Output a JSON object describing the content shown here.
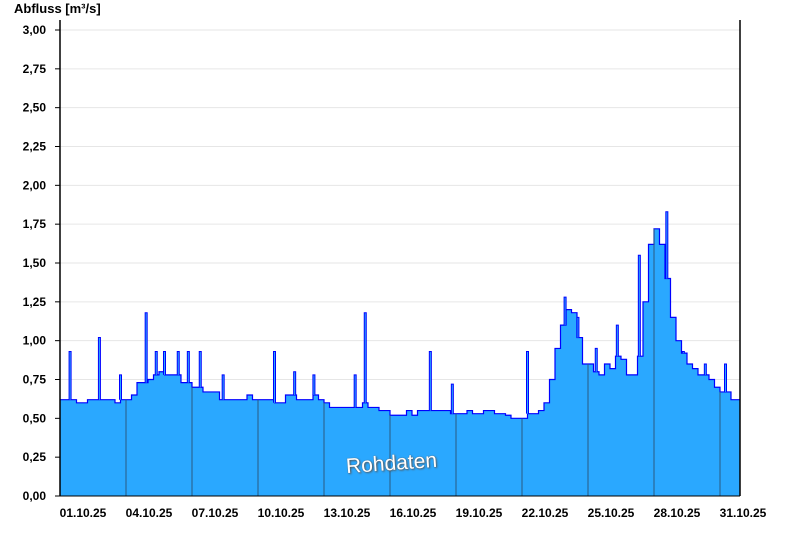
{
  "chart_data": {
    "type": "area",
    "title": "",
    "ylabel": "Abfluss [m³/s]",
    "xlabel": "",
    "ylim": [
      0,
      3.0
    ],
    "yticks": [
      "0,00",
      "0,25",
      "0,50",
      "0,75",
      "1,00",
      "1,25",
      "1,50",
      "1,75",
      "2,00",
      "2,25",
      "2,50",
      "2,75",
      "3,00"
    ],
    "xticks": [
      "01.10.25",
      "04.10.25",
      "07.10.25",
      "10.10.25",
      "13.10.25",
      "16.10.25",
      "19.10.25",
      "22.10.25",
      "25.10.25",
      "28.10.25",
      "31.10.25"
    ],
    "grid": true,
    "watermark": "Rohdaten",
    "colors": {
      "fill": "#2aa8ff",
      "line": "#0000ff",
      "grid": "#e6e6e6",
      "day_marker": "#2a5a80"
    },
    "series": [
      {
        "sampling": "6h (00, 06, 12, 18 Uhr)",
        "daily_values": [
          {
            "date": "01.10.25",
            "v": [
              0.62,
              0.62,
              0.62,
              0.6
            ]
          },
          {
            "date": "02.10.25",
            "v": [
              0.6,
              0.62,
              0.62,
              0.62
            ]
          },
          {
            "date": "03.10.25",
            "v": [
              0.62,
              0.62,
              0.6,
              0.62
            ]
          },
          {
            "date": "04.10.25",
            "v": [
              0.62,
              0.65,
              0.73,
              0.73
            ]
          },
          {
            "date": "05.10.25",
            "v": [
              0.75,
              0.78,
              0.8,
              0.78
            ]
          },
          {
            "date": "06.10.25",
            "v": [
              0.78,
              0.78,
              0.73,
              0.73
            ]
          },
          {
            "date": "07.10.25",
            "v": [
              0.7,
              0.7,
              0.67,
              0.67
            ]
          },
          {
            "date": "08.10.25",
            "v": [
              0.67,
              0.62,
              0.62,
              0.62
            ]
          },
          {
            "date": "09.10.25",
            "v": [
              0.62,
              0.62,
              0.65,
              0.62
            ]
          },
          {
            "date": "10.10.25",
            "v": [
              0.62,
              0.62,
              0.62,
              0.6
            ]
          },
          {
            "date": "11.10.25",
            "v": [
              0.6,
              0.65,
              0.65,
              0.62
            ]
          },
          {
            "date": "12.10.25",
            "v": [
              0.62,
              0.62,
              0.65,
              0.62
            ]
          },
          {
            "date": "13.10.25",
            "v": [
              0.6,
              0.57,
              0.57,
              0.57
            ]
          },
          {
            "date": "14.10.25",
            "v": [
              0.57,
              0.57,
              0.57,
              0.6
            ]
          },
          {
            "date": "15.10.25",
            "v": [
              0.57,
              0.57,
              0.55,
              0.55
            ]
          },
          {
            "date": "16.10.25",
            "v": [
              0.52,
              0.52,
              0.52,
              0.55
            ]
          },
          {
            "date": "17.10.25",
            "v": [
              0.52,
              0.55,
              0.55,
              0.55
            ]
          },
          {
            "date": "18.10.25",
            "v": [
              0.55,
              0.55,
              0.55,
              0.53
            ]
          },
          {
            "date": "19.10.25",
            "v": [
              0.53,
              0.53,
              0.55,
              0.53
            ]
          },
          {
            "date": "20.10.25",
            "v": [
              0.53,
              0.55,
              0.55,
              0.53
            ]
          },
          {
            "date": "21.10.25",
            "v": [
              0.53,
              0.52,
              0.5,
              0.5
            ]
          },
          {
            "date": "22.10.25",
            "v": [
              0.5,
              0.53,
              0.53,
              0.55
            ]
          },
          {
            "date": "23.10.25",
            "v": [
              0.6,
              0.75,
              0.95,
              1.1
            ]
          },
          {
            "date": "24.10.25",
            "v": [
              1.2,
              1.18,
              1.02,
              0.85
            ]
          },
          {
            "date": "25.10.25",
            "v": [
              0.85,
              0.8,
              0.78,
              0.85
            ]
          },
          {
            "date": "26.10.25",
            "v": [
              0.82,
              0.9,
              0.88,
              0.78
            ]
          },
          {
            "date": "27.10.25",
            "v": [
              0.78,
              0.9,
              1.25,
              1.62
            ]
          },
          {
            "date": "28.10.25",
            "v": [
              1.72,
              1.62,
              1.4,
              1.15
            ]
          },
          {
            "date": "29.10.25",
            "v": [
              1.0,
              0.92,
              0.85,
              0.82
            ]
          },
          {
            "date": "30.10.25",
            "v": [
              0.78,
              0.78,
              0.75,
              0.7
            ]
          },
          {
            "date": "31.10.25",
            "v": [
              0.67,
              0.67,
              0.62,
              0.62
            ]
          }
        ],
        "spikes": [
          {
            "t": "01.10.25 11:00",
            "v": 0.93
          },
          {
            "t": "02.10.25 19:00",
            "v": 1.02
          },
          {
            "t": "03.10.25 18:00",
            "v": 0.78
          },
          {
            "t": "04.10.25 22:00",
            "v": 1.18
          },
          {
            "t": "05.10.25 09:00",
            "v": 0.93
          },
          {
            "t": "05.10.25 18:00",
            "v": 0.93
          },
          {
            "t": "06.10.25 09:00",
            "v": 0.93
          },
          {
            "t": "06.10.25 20:00",
            "v": 0.93
          },
          {
            "t": "07.10.25 09:00",
            "v": 0.93
          },
          {
            "t": "08.10.25 10:00",
            "v": 0.78
          },
          {
            "t": "10.10.25 18:00",
            "v": 0.93
          },
          {
            "t": "11.10.25 16:00",
            "v": 0.8
          },
          {
            "t": "12.10.25 13:00",
            "v": 0.78
          },
          {
            "t": "14.10.25 10:00",
            "v": 0.78
          },
          {
            "t": "14.10.25 21:00",
            "v": 1.18
          },
          {
            "t": "17.10.25 20:00",
            "v": 0.93
          },
          {
            "t": "18.10.25 20:00",
            "v": 0.72
          },
          {
            "t": "22.10.25 06:00",
            "v": 0.93
          },
          {
            "t": "23.10.25 23:00",
            "v": 1.28
          },
          {
            "t": "24.10.25 13:00",
            "v": 1.15
          },
          {
            "t": "25.10.25 09:00",
            "v": 0.95
          },
          {
            "t": "26.10.25 08:00",
            "v": 1.1
          },
          {
            "t": "27.10.25 08:00",
            "v": 1.55
          },
          {
            "t": "28.10.25 14:00",
            "v": 1.83
          },
          {
            "t": "29.10.25 08:00",
            "v": 0.93
          },
          {
            "t": "30.10.25 08:00",
            "v": 0.85
          },
          {
            "t": "31.10.25 06:00",
            "v": 0.85
          }
        ]
      }
    ]
  }
}
